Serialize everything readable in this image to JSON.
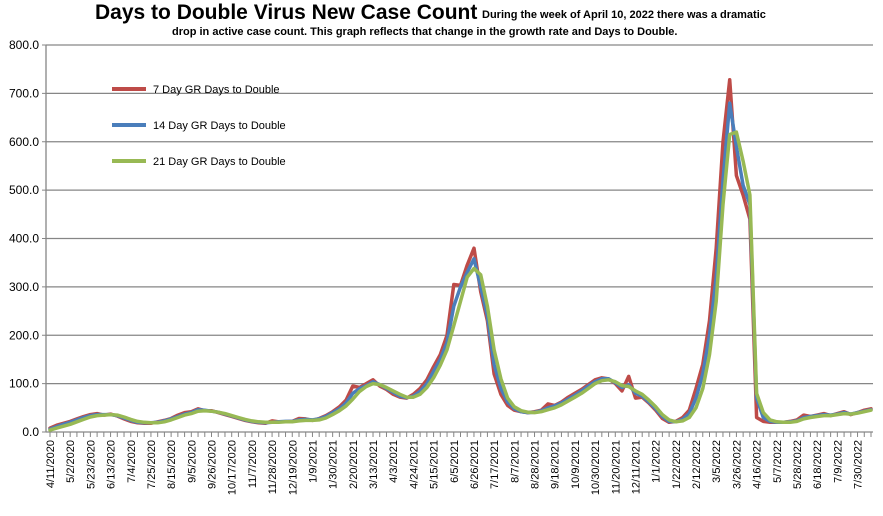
{
  "chart_data": {
    "type": "line",
    "title": "Days to Double Virus New Case Count",
    "subtitle_line1": "During the week of April 10, 2022 there was a dramatic",
    "subtitle_line2": "drop in active case count.  This graph reflects that change in the growth rate and Days to Double.",
    "xlabel": "",
    "ylabel": "",
    "x_interval": "weekly",
    "ylim": [
      0,
      800
    ],
    "y_ticks": [
      "0.0",
      "100.0",
      "200.0",
      "300.0",
      "400.0",
      "500.0",
      "600.0",
      "700.0",
      "800.0"
    ],
    "grid": "horizontal",
    "legend_position": "top-left",
    "x_tick_labels": [
      "4/11/2020",
      "5/2/2020",
      "5/23/2020",
      "6/13/2020",
      "7/4/2020",
      "7/25/2020",
      "8/15/2020",
      "9/5/2020",
      "9/26/2020",
      "10/17/2020",
      "11/7/2020",
      "11/28/2020",
      "12/19/2020",
      "1/9/2021",
      "1/30/2021",
      "2/20/2021",
      "3/13/2021",
      "4/3/2021",
      "4/24/2021",
      "5/15/2021",
      "6/5/2021",
      "6/26/2021",
      "7/17/2021",
      "8/7/2021",
      "8/28/2021",
      "9/18/2021",
      "10/9/2021",
      "10/30/2021",
      "11/20/2021",
      "12/11/2021",
      "1/1/2022",
      "1/22/2022",
      "2/12/2022",
      "3/5/2022",
      "3/26/2022",
      "4/16/2022",
      "5/7/2022",
      "5/28/2022",
      "6/18/2022",
      "7/9/2022",
      "7/30/2022"
    ],
    "series": [
      {
        "name": "7 Day GR Days to Double",
        "color": "#be4b48",
        "values": [
          8,
          14,
          18,
          22,
          27,
          32,
          36,
          38,
          35,
          37,
          33,
          27,
          22,
          19,
          18,
          18,
          21,
          24,
          28,
          35,
          40,
          42,
          48,
          44,
          44,
          40,
          36,
          32,
          28,
          24,
          21,
          19,
          18,
          23,
          21,
          21,
          22,
          28,
          27,
          24,
          28,
          34,
          42,
          52,
          66,
          95,
          92,
          100,
          108,
          95,
          88,
          78,
          72,
          70,
          78,
          90,
          108,
          135,
          160,
          200,
          305,
          303,
          345,
          380,
          290,
          230,
          120,
          78,
          55,
          45,
          42,
          40,
          42,
          45,
          58,
          55,
          62,
          72,
          80,
          88,
          98,
          108,
          112,
          110,
          100,
          85,
          115,
          70,
          72,
          60,
          45,
          28,
          20,
          22,
          30,
          45,
          90,
          140,
          230,
          380,
          600,
          728,
          530,
          490,
          440,
          30,
          22,
          20,
          20,
          20,
          22,
          25,
          35,
          32,
          35,
          38,
          34,
          38,
          42,
          36,
          40,
          45,
          48
        ]
      },
      {
        "name": "14 Day GR Days to Double",
        "color": "#4a7ebb",
        "values": [
          6,
          11,
          16,
          20,
          25,
          30,
          34,
          36,
          36,
          36,
          34,
          29,
          24,
          20,
          19,
          19,
          20,
          23,
          27,
          32,
          37,
          40,
          46,
          45,
          43,
          41,
          37,
          33,
          29,
          25,
          22,
          20,
          19,
          20,
          21,
          22,
          22,
          25,
          26,
          25,
          27,
          32,
          40,
          48,
          60,
          80,
          90,
          96,
          104,
          98,
          90,
          82,
          74,
          71,
          74,
          84,
          100,
          125,
          150,
          185,
          260,
          300,
          330,
          358,
          300,
          240,
          140,
          90,
          62,
          48,
          42,
          40,
          41,
          44,
          50,
          54,
          60,
          68,
          76,
          85,
          95,
          104,
          110,
          110,
          102,
          92,
          98,
          80,
          74,
          62,
          48,
          32,
          22,
          21,
          26,
          38,
          70,
          120,
          200,
          320,
          520,
          680,
          590,
          510,
          470,
          70,
          30,
          22,
          20,
          20,
          21,
          23,
          30,
          32,
          34,
          36,
          35,
          37,
          40,
          37,
          40,
          43,
          46
        ]
      },
      {
        "name": "21 Day GR Days to Double",
        "color": "#98b954",
        "values": [
          4,
          8,
          12,
          16,
          21,
          26,
          31,
          34,
          35,
          36,
          35,
          31,
          26,
          22,
          20,
          19,
          19,
          21,
          25,
          30,
          35,
          38,
          43,
          44,
          43,
          41,
          38,
          34,
          30,
          26,
          23,
          21,
          20,
          20,
          20,
          21,
          21,
          23,
          24,
          24,
          25,
          29,
          36,
          44,
          54,
          68,
          84,
          94,
          100,
          98,
          92,
          85,
          78,
          72,
          72,
          78,
          92,
          112,
          138,
          170,
          220,
          270,
          320,
          338,
          325,
          260,
          170,
          110,
          70,
          52,
          44,
          41,
          40,
          42,
          46,
          50,
          56,
          64,
          72,
          80,
          90,
          100,
          106,
          108,
          104,
          96,
          94,
          85,
          78,
          66,
          52,
          36,
          25,
          21,
          23,
          30,
          50,
          90,
          160,
          270,
          470,
          615,
          620,
          560,
          490,
          80,
          40,
          25,
          21,
          20,
          20,
          22,
          27,
          30,
          32,
          34,
          34,
          36,
          38,
          37,
          39,
          42,
          45
        ]
      }
    ]
  }
}
